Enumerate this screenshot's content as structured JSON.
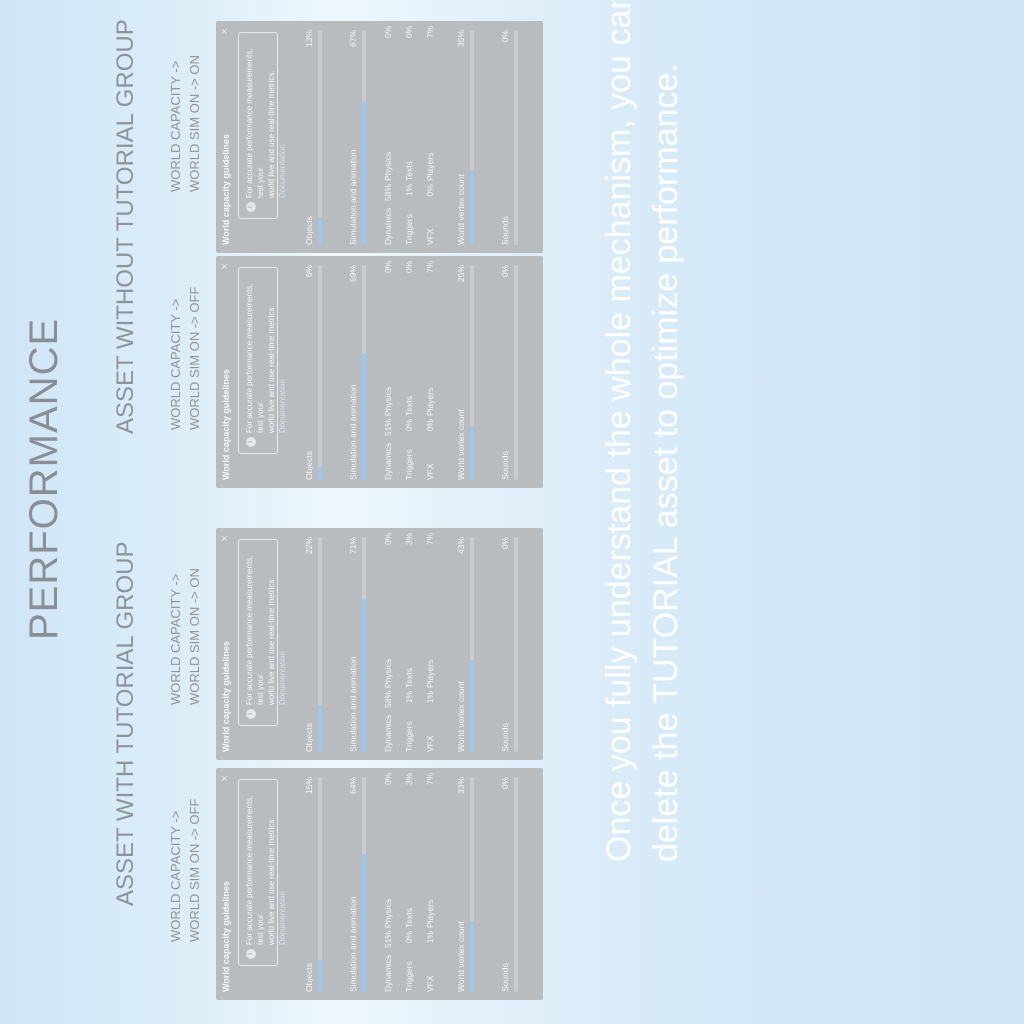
{
  "page": {
    "title": "PERFORMANCE",
    "with_group": "ASSET WITH TUTORIAL GROUP",
    "without_group": "ASSET WITHOUT TUTORIAL GROUP",
    "message_line1": "Once you fully understand the whole mechanism, you can",
    "message_line2": "delete the TUTORIAL asset to optimize performance."
  },
  "captions": [
    {
      "line1": "WORLD CAPACITY ->",
      "line2": "WORLD SIM ON -> OFF"
    },
    {
      "line1": "WORLD CAPACITY ->",
      "line2": "WORLD SIM ON -> ON"
    },
    {
      "line1": "WORLD CAPACITY ->",
      "line2": "WORLD SIM ON -> OFF"
    },
    {
      "line1": "WORLD CAPACITY ->",
      "line2": "WORLD SIM ON -> ON"
    }
  ],
  "panel_labels": {
    "title": "World capacity guidelines",
    "close": "×",
    "info_line1": "For accurate performance measurements, test your",
    "info_line2": "world live and use real-time metrics.",
    "doc_link": "Documentation",
    "objects": "Objects",
    "simulation": "Simulation and animation",
    "dynamics": "Dynamics",
    "physics": "Physics",
    "triggers": "Triggers",
    "texts": "Texts",
    "vfx": "VFX",
    "players": "Players",
    "vertex": "World vertex count",
    "sounds": "Sounds"
  },
  "panels": [
    {
      "objects": "15%",
      "objects_pct": 15,
      "simulation": "64%",
      "simulation_pct": 64,
      "physics": "51%",
      "texts": "0%",
      "players": "1%",
      "dynamics": "0%",
      "triggers": "3%",
      "vfx": "7%",
      "vertex": "33%",
      "vertex_pct": 33,
      "sounds": "0%",
      "sounds_pct": 0
    },
    {
      "objects": "22%",
      "objects_pct": 22,
      "simulation": "71%",
      "simulation_pct": 71,
      "physics": "58%",
      "texts": "1%",
      "players": "1%",
      "dynamics": "0%",
      "triggers": "3%",
      "vfx": "7%",
      "vertex": "43%",
      "vertex_pct": 43,
      "sounds": "0%",
      "sounds_pct": 0
    },
    {
      "objects": "6%",
      "objects_pct": 6,
      "simulation": "59%",
      "simulation_pct": 59,
      "physics": "51%",
      "texts": "0%",
      "players": "0%",
      "dynamics": "0%",
      "triggers": "0%",
      "vfx": "7%",
      "vertex": "25%",
      "vertex_pct": 25,
      "sounds": "0%",
      "sounds_pct": 0
    },
    {
      "objects": "13%",
      "objects_pct": 13,
      "simulation": "67%",
      "simulation_pct": 67,
      "physics": "58%",
      "texts": "1%",
      "players": "0%",
      "dynamics": "0%",
      "triggers": "0%",
      "vfx": "7%",
      "vertex": "35%",
      "vertex_pct": 35,
      "sounds": "0%",
      "sounds_pct": 0
    }
  ]
}
